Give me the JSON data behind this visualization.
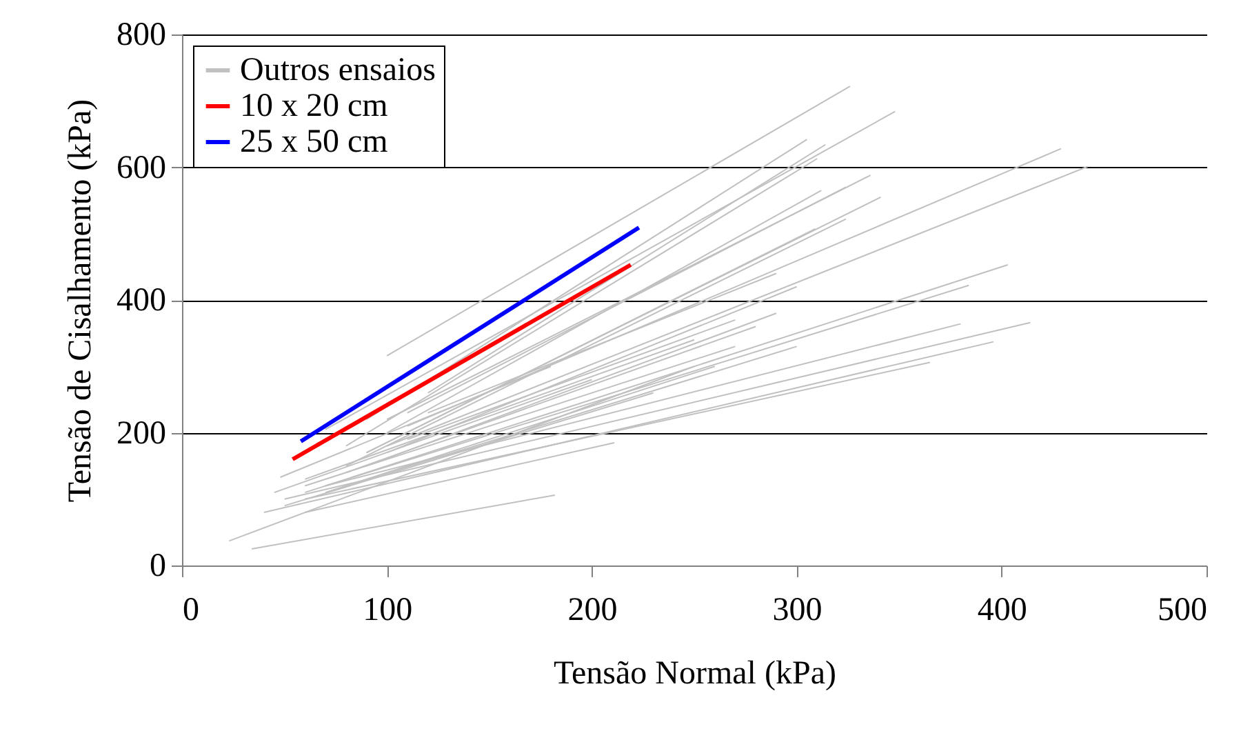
{
  "chart_data": {
    "type": "line",
    "xlabel": "Tensão Normal (kPa)",
    "ylabel": "Tensão de Cisalhamento (kPa)",
    "xlim": [
      0,
      500
    ],
    "xticks": [
      0,
      100,
      200,
      300,
      400,
      500
    ],
    "ylim": [
      0,
      800
    ],
    "yticks": [
      0,
      200,
      400,
      600,
      800
    ],
    "grid": "y",
    "legend": "top left",
    "marker": "none",
    "line_style": "solid",
    "series": [
      {
        "name": "Outros ensaios",
        "color": "#c0c0c0",
        "x": [
          100,
          326
        ],
        "values": [
          316,
          722
        ]
      },
      {
        "color": "#c0c0c0",
        "x": [
          70,
          348
        ],
        "values": [
          205,
          684
        ]
      },
      {
        "color": "#c0c0c0",
        "x": [
          110,
          429
        ],
        "values": [
          210,
          628
        ]
      },
      {
        "color": "#c0c0c0",
        "x": [
          100,
          442
        ],
        "values": [
          180,
          601
        ]
      },
      {
        "color": "#c0c0c0",
        "x": [
          90,
          305
        ],
        "values": [
          220,
          642
        ]
      },
      {
        "color": "#c0c0c0",
        "x": [
          120,
          314
        ],
        "values": [
          260,
          634
        ]
      },
      {
        "color": "#c0c0c0",
        "x": [
          80,
          310
        ],
        "values": [
          180,
          613
        ]
      },
      {
        "color": "#c0c0c0",
        "x": [
          100,
          336
        ],
        "values": [
          220,
          588
        ]
      },
      {
        "color": "#c0c0c0",
        "x": [
          90,
          341
        ],
        "values": [
          170,
          555
        ]
      },
      {
        "color": "#c0c0c0",
        "x": [
          100,
          312
        ],
        "values": [
          200,
          565
        ]
      },
      {
        "color": "#c0c0c0",
        "x": [
          110,
          324
        ],
        "values": [
          230,
          570
        ]
      },
      {
        "color": "#c0c0c0",
        "x": [
          80,
          324
        ],
        "values": [
          150,
          522
        ]
      },
      {
        "color": "#c0c0c0",
        "x": [
          90,
          309
        ],
        "values": [
          170,
          507
        ]
      },
      {
        "color": "#c0c0c0",
        "x": [
          60,
          403
        ],
        "values": [
          110,
          453
        ]
      },
      {
        "color": "#c0c0c0",
        "x": [
          70,
          384
        ],
        "values": [
          120,
          422
        ]
      },
      {
        "color": "#c0c0c0",
        "x": [
          50,
          414
        ],
        "values": [
          100,
          366
        ]
      },
      {
        "color": "#c0c0c0",
        "x": [
          70,
          380
        ],
        "values": [
          120,
          364
        ]
      },
      {
        "color": "#c0c0c0",
        "x": [
          40,
          396
        ],
        "values": [
          80,
          337
        ]
      },
      {
        "color": "#c0c0c0",
        "x": [
          60,
          365
        ],
        "values": [
          100,
          306
        ]
      },
      {
        "color": "#c0c0c0",
        "x": [
          34,
          182
        ],
        "values": [
          25,
          106
        ]
      },
      {
        "color": "#c0c0c0",
        "x": [
          23,
          250
        ],
        "values": [
          37,
          300
        ]
      },
      {
        "color": "#c0c0c0",
        "x": [
          60,
          211
        ],
        "values": [
          80,
          185
        ]
      },
      {
        "color": "#c0c0c0",
        "x": [
          60,
          270
        ],
        "values": [
          120,
          330
        ]
      },
      {
        "color": "#c0c0c0",
        "x": [
          80,
          280
        ],
        "values": [
          140,
          360
        ]
      },
      {
        "color": "#c0c0c0",
        "x": [
          70,
          260
        ],
        "values": [
          110,
          300
        ]
      },
      {
        "color": "#c0c0c0",
        "x": [
          90,
          290
        ],
        "values": [
          150,
          380
        ]
      },
      {
        "color": "#c0c0c0",
        "x": [
          50,
          230
        ],
        "values": [
          90,
          260
        ]
      },
      {
        "color": "#c0c0c0",
        "x": [
          100,
          300
        ],
        "values": [
          170,
          420
        ]
      },
      {
        "color": "#c0c0c0",
        "x": [
          60,
          250
        ],
        "values": [
          130,
          340
        ]
      },
      {
        "color": "#c0c0c0",
        "x": [
          80,
          300
        ],
        "values": [
          120,
          330
        ]
      },
      {
        "color": "#c0c0c0",
        "x": [
          45,
          200
        ],
        "values": [
          110,
          280
        ]
      },
      {
        "color": "#c0c0c0",
        "x": [
          120,
          290
        ],
        "values": [
          230,
          440
        ]
      },
      {
        "color": "#c0c0c0",
        "x": [
          110,
          270
        ],
        "values": [
          190,
          370
        ]
      },
      {
        "color": "#c0c0c0",
        "x": [
          48,
          180
        ],
        "values": [
          133,
          300
        ]
      },
      {
        "name": "10 x 20 cm",
        "color": "#ff0000",
        "x": [
          54,
          219
        ],
        "values": [
          160,
          453
        ]
      },
      {
        "name": "25 x 50 cm",
        "color": "#0000ff",
        "x": [
          58,
          223
        ],
        "values": [
          187,
          509
        ]
      }
    ]
  }
}
